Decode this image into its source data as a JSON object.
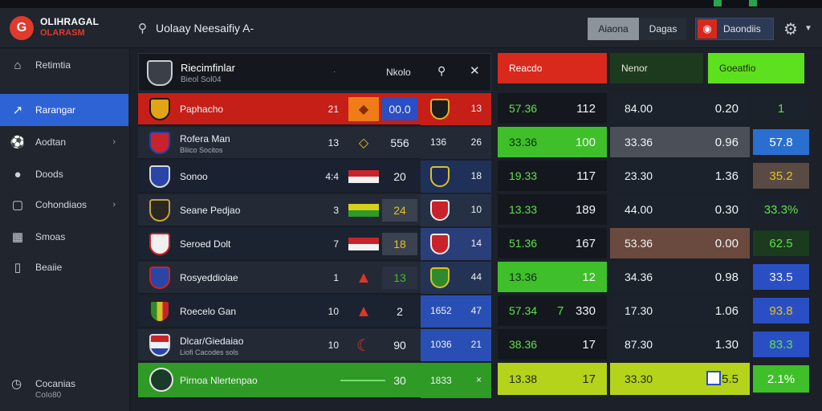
{
  "app": {
    "logo_line1": "OLIHRAGAL",
    "logo_line2": "OLARASM",
    "logo_mark": "G"
  },
  "search": {
    "text": "Uolaay Neesaifiy A-"
  },
  "topbar": {
    "btn_primary": "Aiaona",
    "btn_secondary": "Dagas",
    "btn_account": "Daondiis"
  },
  "sidebar": {
    "items": [
      {
        "label": "Retimtia",
        "icon": "home-icon"
      },
      {
        "label": "Rarangar",
        "icon": "trend-icon",
        "active": true
      },
      {
        "label": "Aodtan",
        "icon": "soccer-ball-icon",
        "chevron": true
      },
      {
        "label": "Doods",
        "icon": "chat-icon"
      },
      {
        "label": "Cohondiaos",
        "icon": "monitor-icon",
        "chevron": true
      },
      {
        "label": "Smoas",
        "icon": "calendar-icon"
      },
      {
        "label": "Beaiie",
        "icon": "stats-icon"
      }
    ],
    "footer": {
      "label": "Cocanias",
      "sub": "CoIo80"
    }
  },
  "league": {
    "name": "Riecimfinlar",
    "sub": "Bieol Sol04",
    "meta": "·",
    "tab": "Nkolo"
  },
  "matches": [
    {
      "name": "Paphacho",
      "num": "21",
      "value": "00.0",
      "badge_label": "13",
      "icon": "diamond-icon",
      "icon_color": "#f07c18",
      "row_color": "#c51f18"
    },
    {
      "name": "Rofera Man",
      "sub": "Bliico Socitos",
      "num": "13",
      "value": "556",
      "badge_label": "136",
      "badge_value": "26",
      "icon": "diamond-outline-icon",
      "icon_color": "#e6c21b"
    },
    {
      "name": "Sonoo",
      "num": "4:4",
      "value": "20",
      "badge_label": "18",
      "icon": "flag-red-white-icon"
    },
    {
      "name": "Seane Pedjao",
      "num": "3",
      "value": "24",
      "badge_label": "10",
      "icon": "flag-yellow-green-icon"
    },
    {
      "name": "Seroed Dolt",
      "num": "7",
      "value": "18",
      "badge_label": "14",
      "icon": "flag-red-white-icon"
    },
    {
      "name": "Rosyeddiolae",
      "num": "1",
      "value": "13",
      "badge_label": "44",
      "icon": "triangle-icon",
      "icon_color": "#e0342a"
    },
    {
      "name": "Roecelo Gan",
      "num": "10",
      "value": "2",
      "badge_label": "1652",
      "badge_value": "47",
      "icon": "triangle-icon",
      "icon_color": "#e0342a"
    },
    {
      "name": "Dlcar/Giedaiao",
      "sub": "Liofi Cacodes sols",
      "num": "10",
      "value": "90",
      "badge_label": "1036",
      "badge_value": "21",
      "icon": "crescent-icon",
      "icon_color": "#e0342a"
    },
    {
      "name": "Pirnoa Nlertenpao",
      "value": "30",
      "badge_label": "1833",
      "badge_value": "×"
    }
  ],
  "odds": {
    "headers": [
      "Reacdo",
      "Nenor",
      "Goeatfio"
    ],
    "rows": [
      {
        "a": "57.36",
        "b": "112",
        "c": "84.00",
        "d": "0.20",
        "e": "1"
      },
      {
        "a": "33.36",
        "b": "100",
        "c": "33.36",
        "d": "0.96",
        "e": "57.8"
      },
      {
        "a": "19.33",
        "b": "117",
        "c": "23.30",
        "d": "1.36",
        "e": "35.2"
      },
      {
        "a": "13.33",
        "b": "189",
        "c": "44.00",
        "d": "0.30",
        "e": "33.3%"
      },
      {
        "a": "51.36",
        "b": "167",
        "c": "53.36",
        "d": "0.00",
        "e": "62.5"
      },
      {
        "a": "13.36",
        "b": "12",
        "c": "34.36",
        "d": "0.98",
        "e": "33.5"
      },
      {
        "a": "57.34",
        "a2": "7",
        "b": "330",
        "c": "17.30",
        "d": "1.06",
        "e": "93.8"
      },
      {
        "a": "38.36",
        "b": "17",
        "c": "87.30",
        "d": "1.30",
        "e": "83.3"
      },
      {
        "a": "13.38",
        "b": "17",
        "c": "33.30",
        "d": "0.5.5",
        "e": "2.1%"
      }
    ]
  },
  "colors": {
    "accent": "#2e63d6",
    "brand": "#e03a2c",
    "green": "#3fbf2a",
    "lime": "#b5d31a",
    "red": "#d3281b"
  }
}
